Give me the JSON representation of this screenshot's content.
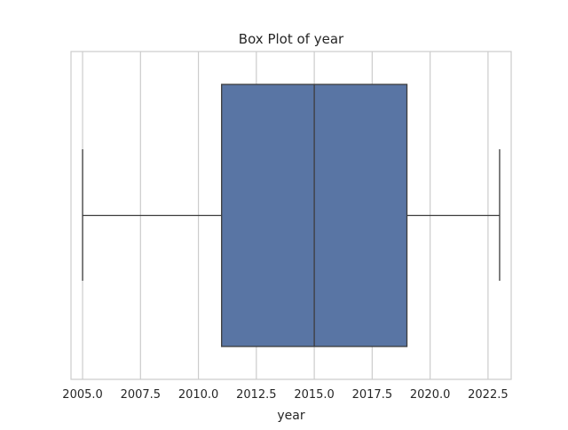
{
  "chart_data": {
    "type": "box",
    "title": "Box Plot of year",
    "xlabel": "year",
    "ylabel": "",
    "xlim": [
      2004.5,
      2023.5
    ],
    "x_ticks": [
      2005.0,
      2007.5,
      2010.0,
      2012.5,
      2015.0,
      2017.5,
      2020.0,
      2022.5
    ],
    "x_tick_labels": [
      "2005.0",
      "2007.5",
      "2010.0",
      "2012.5",
      "2015.0",
      "2017.5",
      "2020.0",
      "2022.5"
    ],
    "grid": "vertical",
    "orientation": "horizontal",
    "series": [
      {
        "min": 2005,
        "q1": 2011,
        "median": 2015,
        "q3": 2019,
        "max": 2023
      }
    ],
    "colors": {
      "box_fill": "#5975a4",
      "line": "#3d3d3d",
      "grid": "#cccccc",
      "frame": "#cccccc",
      "background": "#ffffff"
    }
  }
}
